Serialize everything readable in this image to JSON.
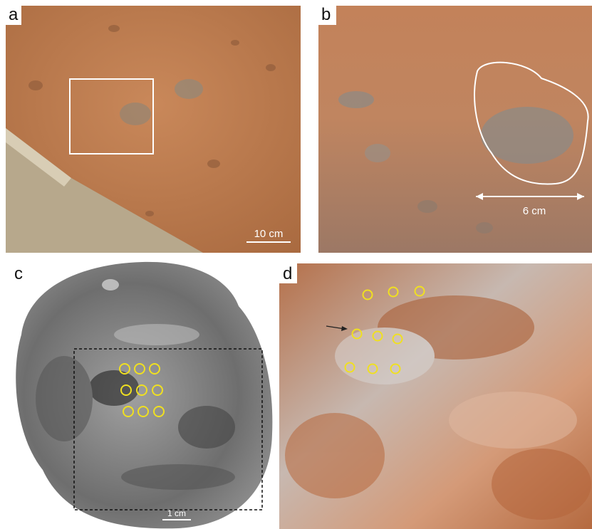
{
  "panels": [
    {
      "label": "a",
      "scale_bar": "10 cm"
    },
    {
      "label": "b",
      "scale_bar": "6 cm"
    },
    {
      "label": "c",
      "scale_bar": "1 cm"
    },
    {
      "label": "d"
    }
  ]
}
